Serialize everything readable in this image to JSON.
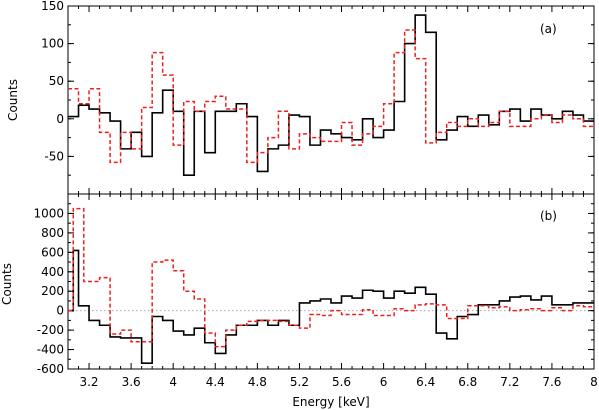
{
  "chart_data": [
    {
      "type": "line",
      "panel": "top",
      "annotation": "(a)",
      "ylabel": "Counts",
      "xlabel": "",
      "xlim": [
        3.0,
        8.0
      ],
      "ylim": [
        -100,
        150
      ],
      "yticks": [
        -50,
        0,
        50,
        100,
        150
      ],
      "ytick_labels": [
        "-50",
        "0",
        "50",
        "100",
        "150"
      ],
      "series": [
        {
          "color": "#000000",
          "style": "solid-step",
          "bins": [
            3.0,
            3.1,
            3.2,
            3.3,
            3.4,
            3.5,
            3.6,
            3.7,
            3.8,
            3.9,
            4.0,
            4.1,
            4.2,
            4.3,
            4.4,
            4.6,
            4.7,
            4.8,
            4.9,
            5.0,
            5.1,
            5.2,
            5.3,
            5.4,
            5.5,
            5.6,
            5.7,
            5.8,
            5.9,
            6.0,
            6.1,
            6.2,
            6.3,
            6.4,
            6.5,
            6.6,
            6.7,
            6.8,
            6.9,
            7.0,
            7.1,
            7.2,
            7.3,
            7.4,
            7.5,
            7.6,
            7.7,
            7.8,
            7.9,
            8.0
          ],
          "values": [
            3,
            18,
            13,
            8,
            -3,
            -40,
            -18,
            -50,
            8,
            38,
            10,
            -75,
            10,
            -45,
            10,
            20,
            3,
            -70,
            -40,
            -35,
            5,
            3,
            -35,
            -15,
            -20,
            -25,
            -28,
            0,
            -25,
            -15,
            23,
            100,
            138,
            115,
            -28,
            -15,
            3,
            -10,
            5,
            -8,
            10,
            13,
            -3,
            13,
            5,
            0,
            10,
            5,
            -3
          ]
        },
        {
          "color": "#e8231f",
          "style": "dashed-step",
          "bins": [
            3.0,
            3.1,
            3.2,
            3.3,
            3.4,
            3.5,
            3.6,
            3.7,
            3.8,
            3.9,
            4.0,
            4.1,
            4.2,
            4.3,
            4.4,
            4.5,
            4.6,
            4.7,
            4.8,
            4.9,
            5.0,
            5.1,
            5.2,
            5.3,
            5.4,
            5.5,
            5.6,
            5.7,
            5.8,
            5.9,
            6.0,
            6.1,
            6.2,
            6.3,
            6.4,
            6.5,
            6.6,
            6.7,
            6.8,
            6.9,
            7.0,
            7.1,
            7.2,
            7.3,
            7.4,
            7.5,
            7.6,
            7.7,
            7.8,
            7.9,
            8.0
          ],
          "values": [
            40,
            20,
            40,
            -18,
            -58,
            -18,
            -40,
            15,
            88,
            58,
            -35,
            23,
            10,
            23,
            30,
            13,
            13,
            -58,
            -45,
            -25,
            10,
            -40,
            -20,
            -25,
            -30,
            -30,
            -5,
            -35,
            -20,
            -10,
            20,
            88,
            118,
            80,
            -32,
            -18,
            -5,
            -10,
            0,
            -10,
            -5,
            10,
            -10,
            -10,
            0,
            5,
            -5,
            5,
            0,
            -10
          ]
        }
      ]
    },
    {
      "type": "line",
      "panel": "bottom",
      "annotation": "(b)",
      "ylabel": "Counts",
      "xlabel": "Energy [keV]",
      "xlim": [
        3.0,
        8.0
      ],
      "ylim": [
        -600,
        1200
      ],
      "yticks": [
        -600,
        -400,
        -200,
        0,
        200,
        400,
        600,
        800,
        1000
      ],
      "ytick_labels": [
        "-600",
        "-400",
        "-200",
        "0",
        "200",
        "400",
        "600",
        "800",
        "1000"
      ],
      "xticks": [
        3.2,
        3.6,
        4.0,
        4.4,
        4.8,
        5.2,
        5.6,
        6.0,
        6.4,
        6.8,
        7.2,
        7.6,
        8.0
      ],
      "xtick_labels": [
        "3.2",
        "3.6",
        "4",
        "4.4",
        "4.8",
        "5.2",
        "5.6",
        "6",
        "6.4",
        "6.8",
        "7.2",
        "7.6",
        "8"
      ],
      "series": [
        {
          "color": "#000000",
          "style": "solid-step",
          "bins": [
            3.0,
            3.05,
            3.1,
            3.2,
            3.3,
            3.4,
            3.5,
            3.6,
            3.7,
            3.8,
            3.9,
            4.0,
            4.1,
            4.2,
            4.3,
            4.4,
            4.5,
            4.6,
            4.7,
            4.8,
            4.9,
            5.0,
            5.1,
            5.2,
            5.3,
            5.4,
            5.5,
            5.6,
            5.7,
            5.8,
            5.9,
            6.0,
            6.1,
            6.2,
            6.3,
            6.4,
            6.5,
            6.6,
            6.7,
            6.8,
            6.9,
            7.0,
            7.1,
            7.2,
            7.3,
            7.4,
            7.5,
            7.6,
            7.7,
            7.8,
            7.9,
            8.0
          ],
          "values": [
            0,
            620,
            50,
            -100,
            -150,
            -270,
            -280,
            -280,
            -540,
            -60,
            -100,
            -210,
            -250,
            -180,
            -330,
            -440,
            -250,
            -150,
            -150,
            -100,
            -150,
            -100,
            -150,
            80,
            100,
            120,
            80,
            150,
            130,
            210,
            200,
            130,
            200,
            180,
            240,
            170,
            -230,
            -290,
            -60,
            -40,
            60,
            60,
            100,
            140,
            150,
            110,
            150,
            60,
            60,
            80,
            80
          ]
        },
        {
          "color": "#e8231f",
          "style": "dashed-step",
          "bins": [
            3.0,
            3.05,
            3.15,
            3.3,
            3.4,
            3.5,
            3.6,
            3.7,
            3.8,
            3.9,
            4.0,
            4.1,
            4.2,
            4.3,
            4.4,
            4.5,
            4.6,
            4.7,
            4.8,
            4.9,
            5.0,
            5.1,
            5.2,
            5.3,
            5.4,
            5.5,
            5.6,
            5.7,
            5.8,
            5.9,
            6.0,
            6.1,
            6.2,
            6.3,
            6.4,
            6.5,
            6.6,
            6.7,
            6.8,
            6.9,
            7.0,
            7.1,
            7.2,
            7.3,
            7.4,
            7.5,
            7.6,
            7.7,
            7.8,
            7.9,
            8.0
          ],
          "values": [
            0,
            1050,
            300,
            340,
            -240,
            -200,
            -320,
            -320,
            500,
            520,
            410,
            200,
            120,
            -230,
            -370,
            -200,
            -150,
            -110,
            -100,
            -100,
            -110,
            -150,
            -180,
            -40,
            -50,
            0,
            -40,
            -40,
            10,
            -50,
            -50,
            20,
            0,
            60,
            70,
            60,
            -80,
            -80,
            50,
            50,
            30,
            40,
            0,
            10,
            20,
            0,
            30,
            0,
            50,
            40,
            30
          ]
        }
      ]
    }
  ]
}
